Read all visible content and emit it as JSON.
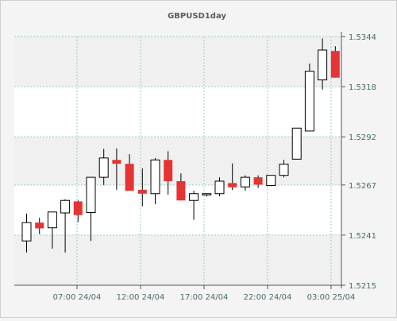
{
  "chart_data": {
    "type": "candlestick",
    "title": "GBPUSD1day",
    "y_ticks": [
      "1.5344",
      "1.5318",
      "1.5292",
      "1.5267",
      "1.5241",
      "1.5215"
    ],
    "y_range": [
      1.5215,
      1.5344
    ],
    "x_ticks": [
      "07:00 24/04",
      "12:00 24/04",
      "17:00 24/04",
      "22:00 24/04",
      "03:00 25/04"
    ],
    "grid": true,
    "colors": {
      "up_body": "#ffffff",
      "down_body": "#e63333",
      "candle_outline": "#000000",
      "grid": "#99cccc",
      "plot_band_light": "#ffffff",
      "plot_band_shaded": "#f0f0f0"
    },
    "candles": [
      {
        "open": 1.5238,
        "high": 1.52522,
        "low": 1.5232,
        "close": 1.52475
      },
      {
        "open": 1.52475,
        "high": 1.525,
        "low": 1.52415,
        "close": 1.52445
      },
      {
        "open": 1.52448,
        "high": 1.52525,
        "low": 1.5234,
        "close": 1.5253
      },
      {
        "open": 1.52525,
        "high": 1.52596,
        "low": 1.5232,
        "close": 1.5259
      },
      {
        "open": 1.52585,
        "high": 1.5259,
        "low": 1.52478,
        "close": 1.52514
      },
      {
        "open": 1.52527,
        "high": 1.5271,
        "low": 1.5238,
        "close": 1.5271
      },
      {
        "open": 1.5271,
        "high": 1.52858,
        "low": 1.5267,
        "close": 1.5281
      },
      {
        "open": 1.528,
        "high": 1.5286,
        "low": 1.52645,
        "close": 1.5278
      },
      {
        "open": 1.5278,
        "high": 1.5283,
        "low": 1.5264,
        "close": 1.5264
      },
      {
        "open": 1.52645,
        "high": 1.52756,
        "low": 1.5256,
        "close": 1.52625
      },
      {
        "open": 1.52625,
        "high": 1.5281,
        "low": 1.5257,
        "close": 1.528
      },
      {
        "open": 1.528,
        "high": 1.52845,
        "low": 1.5262,
        "close": 1.5269
      },
      {
        "open": 1.5269,
        "high": 1.5273,
        "low": 1.5259,
        "close": 1.5259
      },
      {
        "open": 1.5259,
        "high": 1.5264,
        "low": 1.5249,
        "close": 1.52625
      },
      {
        "open": 1.52622,
        "high": 1.5262,
        "low": 1.5261,
        "close": 1.52625
      },
      {
        "open": 1.52625,
        "high": 1.5271,
        "low": 1.52612,
        "close": 1.5269
      },
      {
        "open": 1.5268,
        "high": 1.52782,
        "low": 1.52644,
        "close": 1.52658
      },
      {
        "open": 1.5266,
        "high": 1.5272,
        "low": 1.5264,
        "close": 1.5271
      },
      {
        "open": 1.5271,
        "high": 1.5272,
        "low": 1.52655,
        "close": 1.52672
      },
      {
        "open": 1.52667,
        "high": 1.5272,
        "low": 1.52664,
        "close": 1.5272
      },
      {
        "open": 1.5272,
        "high": 1.528,
        "low": 1.5271,
        "close": 1.52778
      },
      {
        "open": 1.52804,
        "high": 1.52965,
        "low": 1.52804,
        "close": 1.52965
      },
      {
        "open": 1.5295,
        "high": 1.533,
        "low": 1.5295,
        "close": 1.5326
      },
      {
        "open": 1.53215,
        "high": 1.5343,
        "low": 1.53165,
        "close": 1.5337
      },
      {
        "open": 1.53365,
        "high": 1.5339,
        "low": 1.53227,
        "close": 1.53227
      }
    ]
  }
}
